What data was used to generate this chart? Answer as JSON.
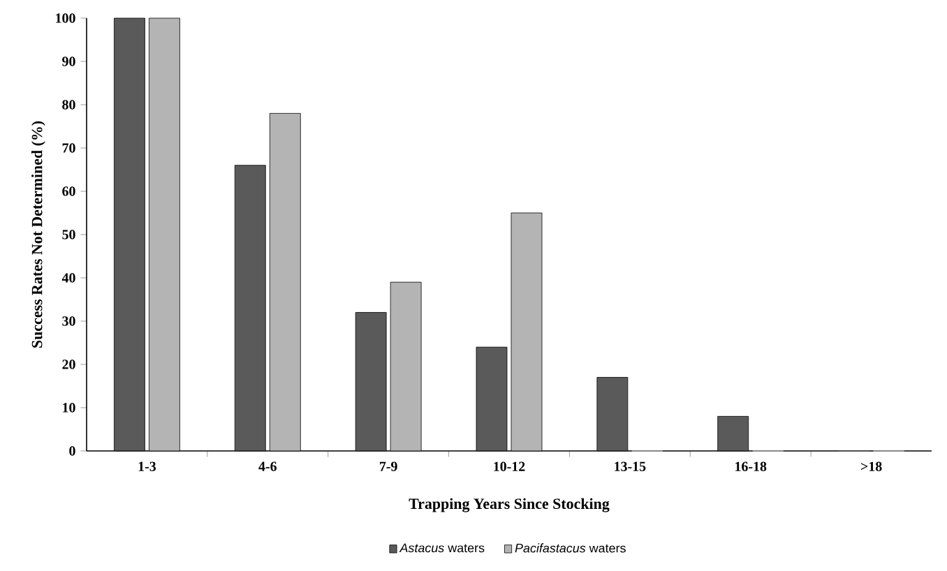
{
  "chart_data": {
    "type": "bar",
    "xlabel": "Trapping Years Since Stocking",
    "ylabel": "Success Rates Not Determined (%)",
    "categories": [
      "1-3",
      "4-6",
      "7-9",
      "10-12",
      "13-15",
      "16-18",
      ">18"
    ],
    "series": [
      {
        "name": "*Astacus* waters",
        "color": "#5a5a5a",
        "values": [
          100,
          66,
          32,
          24,
          17,
          8,
          0
        ]
      },
      {
        "name": "*Pacifastacus* waters",
        "color": "#b4b4b4",
        "values": [
          100,
          78,
          39,
          55,
          0,
          0,
          0
        ]
      }
    ],
    "ylim": [
      0,
      100
    ],
    "yticks": [
      0,
      10,
      20,
      30,
      40,
      50,
      60,
      70,
      80,
      90,
      100
    ],
    "grid": false,
    "legend": "bottom"
  }
}
